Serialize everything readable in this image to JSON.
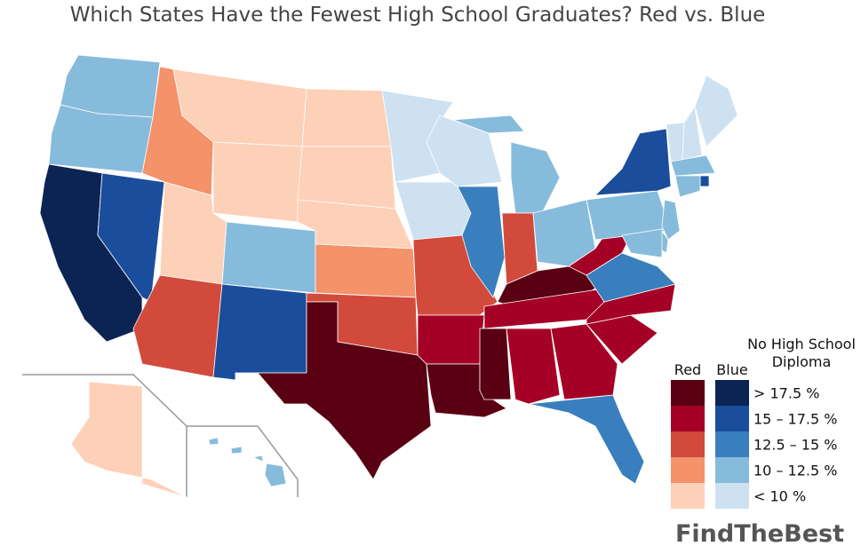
{
  "title": "Which States Have the Fewest High School Graduates? Red vs. Blue",
  "legend": {
    "title": [
      "No High School",
      "Diploma"
    ],
    "columns": [
      {
        "label": "Red",
        "colors": [
          "#5a0013",
          "#a50026",
          "#d24a3c",
          "#f4926a",
          "#fdd0b8"
        ]
      },
      {
        "label": "Blue",
        "colors": [
          "#0b2454",
          "#1a4d9c",
          "#3a7fbd",
          "#87bbdc",
          "#cde1f0"
        ]
      }
    ],
    "bins": [
      "> 17.5 %",
      "15 – 17.5 %",
      "12.5 – 15 %",
      "10 – 12.5 %",
      "< 10 %"
    ]
  },
  "regions": [
    [
      1,
      3
    ],
    [
      1,
      3
    ],
    [
      1,
      0
    ],
    [
      1,
      1
    ],
    [
      0,
      3
    ],
    [
      0,
      4
    ],
    [
      0,
      4
    ],
    [
      0,
      4
    ],
    [
      1,
      3
    ],
    [
      0,
      2
    ],
    [
      1,
      1
    ],
    [
      0,
      4
    ],
    [
      0,
      4
    ],
    [
      0,
      4
    ],
    [
      0,
      3
    ],
    [
      0,
      2
    ],
    [
      0,
      0
    ],
    [
      1,
      4
    ],
    [
      1,
      4
    ],
    [
      0,
      2
    ],
    [
      0,
      1
    ],
    [
      0,
      0
    ],
    [
      1,
      4
    ],
    [
      1,
      2
    ],
    [
      1,
      3
    ],
    [
      0,
      2
    ],
    [
      1,
      3
    ],
    [
      0,
      0
    ],
    [
      0,
      1
    ],
    [
      0,
      0
    ],
    [
      0,
      1
    ],
    [
      0,
      1
    ],
    [
      1,
      2
    ],
    [
      0,
      1
    ],
    [
      0,
      1
    ],
    [
      1,
      2
    ],
    [
      0,
      1
    ],
    [
      1,
      3
    ],
    [
      1,
      1
    ],
    [
      1,
      4
    ],
    [
      1,
      4
    ],
    [
      1,
      4
    ],
    [
      1,
      3
    ],
    [
      1,
      1
    ],
    [
      1,
      3
    ],
    [
      1,
      3
    ],
    [
      1,
      3
    ],
    [
      1,
      3
    ],
    [
      0,
      4
    ],
    [
      1,
      3
    ]
  ],
  "brand": "FindTheBest"
}
